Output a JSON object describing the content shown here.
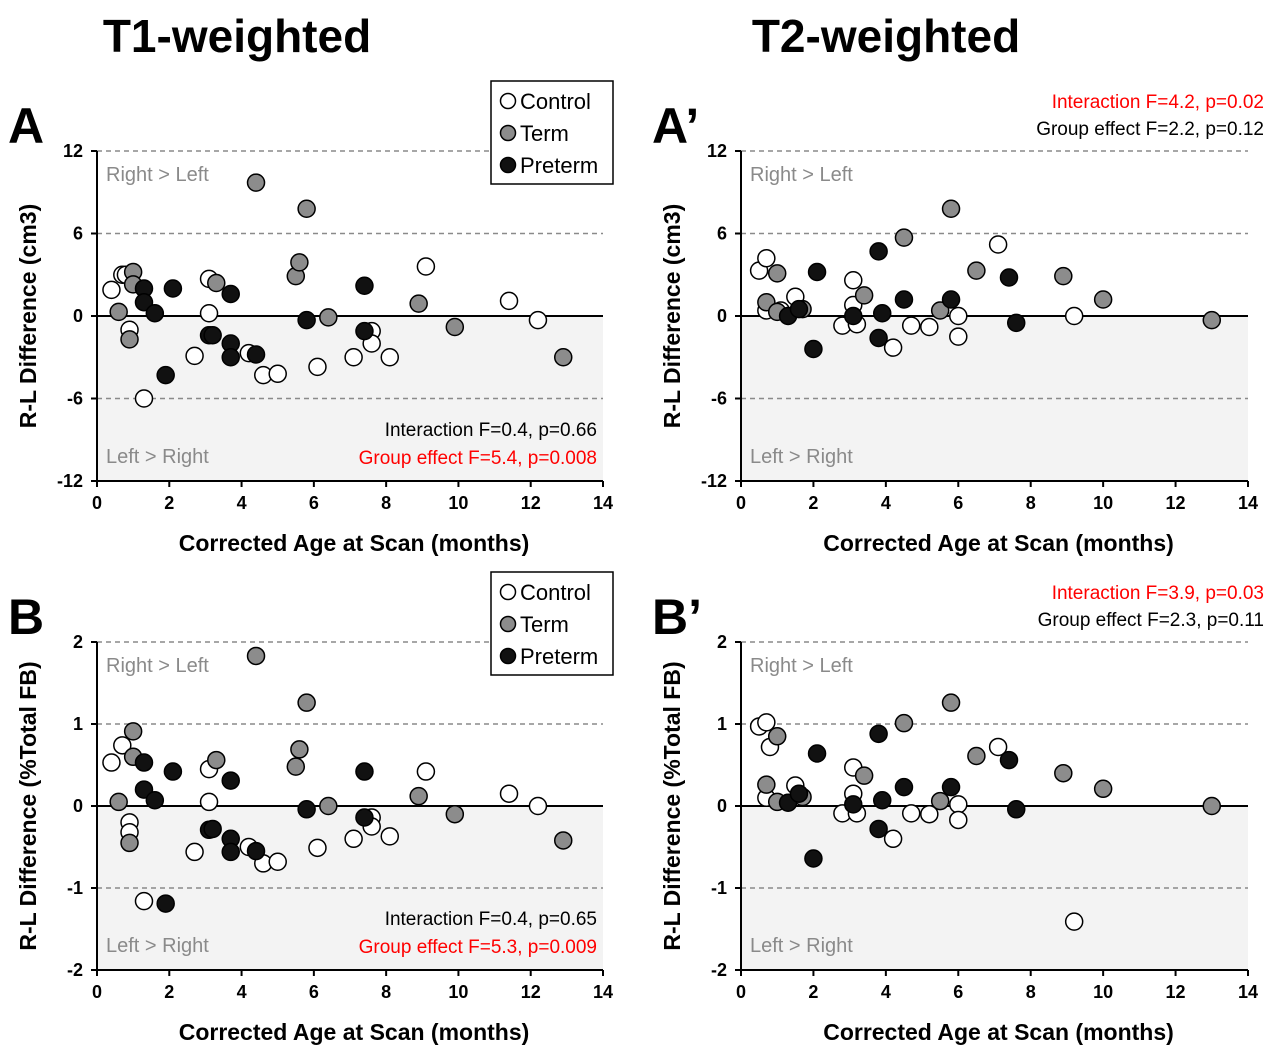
{
  "column_titles": [
    "T1-weighted",
    "T2-weighted"
  ],
  "colors": {
    "control": "#ffffff",
    "term": "#8c8c8c",
    "preterm": "#111111",
    "significant": "#ff0000",
    "normal": "#000000",
    "region_label": "#8a8a8a",
    "negative_shade": "#f3f3f3"
  },
  "chart_data": [
    {
      "panel": "A",
      "type": "scatter",
      "xlabel": "Corrected Age at Scan (months)",
      "ylabel": "R-L Difference (cm3)",
      "xlim": [
        0,
        14
      ],
      "ylim": [
        -12,
        12
      ],
      "xticks": [
        0,
        2,
        4,
        6,
        8,
        10,
        12,
        14
      ],
      "yticks": [
        12,
        6,
        0,
        -6,
        -12
      ],
      "gridlines": [
        12,
        6,
        -6
      ],
      "region_labels": [
        "Right > Left",
        "Left > Right"
      ],
      "legend": {
        "placement": "top-right",
        "entries": [
          "Control",
          "Term",
          "Preterm"
        ]
      },
      "stats": [
        {
          "text": "Interaction F=0.4, p=0.66",
          "significant": false
        },
        {
          "text": "Group effect F=5.4, p=0.008",
          "significant": true
        }
      ],
      "stats_placement": "bottom-right",
      "series": [
        {
          "name": "Control",
          "points": [
            [
              0.4,
              1.9
            ],
            [
              0.7,
              3.0
            ],
            [
              0.9,
              -1.0
            ],
            [
              0.8,
              3.0
            ],
            [
              1.3,
              -6.0
            ],
            [
              2.7,
              -2.9
            ],
            [
              3.1,
              2.7
            ],
            [
              3.1,
              0.2
            ],
            [
              4.2,
              -2.7
            ],
            [
              4.6,
              -4.3
            ],
            [
              5.0,
              -4.2
            ],
            [
              6.1,
              -3.7
            ],
            [
              7.1,
              -3.0
            ],
            [
              7.6,
              -1.1
            ],
            [
              7.6,
              -2.0
            ],
            [
              8.1,
              -3.0
            ],
            [
              9.1,
              3.6
            ],
            [
              11.4,
              1.1
            ],
            [
              12.2,
              -0.3
            ]
          ]
        },
        {
          "name": "Term",
          "points": [
            [
              0.6,
              0.3
            ],
            [
              0.9,
              -1.7
            ],
            [
              1.0,
              3.2
            ],
            [
              1.0,
              2.3
            ],
            [
              3.3,
              2.4
            ],
            [
              4.4,
              9.7
            ],
            [
              5.5,
              2.9
            ],
            [
              5.6,
              3.9
            ],
            [
              5.8,
              7.8
            ],
            [
              6.4,
              -0.1
            ],
            [
              8.9,
              0.9
            ],
            [
              9.9,
              -0.8
            ],
            [
              12.9,
              -3.0
            ]
          ]
        },
        {
          "name": "Preterm",
          "points": [
            [
              1.3,
              2.0
            ],
            [
              1.3,
              1.0
            ],
            [
              1.6,
              0.2
            ],
            [
              1.9,
              -4.3
            ],
            [
              2.1,
              2.0
            ],
            [
              3.1,
              -1.4
            ],
            [
              3.2,
              -1.4
            ],
            [
              3.7,
              1.6
            ],
            [
              3.7,
              -2.0
            ],
            [
              3.7,
              -3.0
            ],
            [
              4.4,
              -2.8
            ],
            [
              5.8,
              -0.3
            ],
            [
              7.4,
              2.2
            ],
            [
              7.4,
              -1.1
            ]
          ]
        }
      ]
    },
    {
      "panel": "A’",
      "type": "scatter",
      "xlabel": "Corrected Age at Scan (months)",
      "ylabel": "R-L Difference (cm3)",
      "xlim": [
        0,
        14
      ],
      "ylim": [
        -12,
        12
      ],
      "xticks": [
        0,
        2,
        4,
        6,
        8,
        10,
        12,
        14
      ],
      "yticks": [
        12,
        6,
        0,
        -6,
        -12
      ],
      "gridlines": [
        12,
        6,
        -6
      ],
      "region_labels": [
        "Right > Left",
        "Left > Right"
      ],
      "stats": [
        {
          "text": "Interaction F=4.2, p=0.02",
          "significant": true
        },
        {
          "text": "Group effect F=2.2, p=0.12",
          "significant": false
        }
      ],
      "stats_placement": "above-top-right",
      "series": [
        {
          "name": "Control",
          "points": [
            [
              0.5,
              3.3
            ],
            [
              0.7,
              4.2
            ],
            [
              0.7,
              0.4
            ],
            [
              1.1,
              0.4
            ],
            [
              1.5,
              1.4
            ],
            [
              2.8,
              -0.7
            ],
            [
              3.1,
              2.6
            ],
            [
              3.1,
              0.8
            ],
            [
              3.2,
              -0.6
            ],
            [
              4.2,
              -2.3
            ],
            [
              4.7,
              -0.7
            ],
            [
              5.2,
              -0.8
            ],
            [
              6.0,
              0.0
            ],
            [
              6.0,
              -1.5
            ],
            [
              7.1,
              5.2
            ],
            [
              9.2,
              0.0
            ]
          ]
        },
        {
          "name": "Term",
          "points": [
            [
              0.7,
              1.0
            ],
            [
              1.0,
              3.1
            ],
            [
              1.0,
              0.3
            ],
            [
              1.7,
              0.5
            ],
            [
              3.4,
              1.5
            ],
            [
              4.5,
              5.7
            ],
            [
              5.5,
              0.4
            ],
            [
              5.8,
              7.8
            ],
            [
              6.5,
              3.3
            ],
            [
              8.9,
              2.9
            ],
            [
              10.0,
              1.2
            ],
            [
              13.0,
              -0.3
            ]
          ]
        },
        {
          "name": "Preterm",
          "points": [
            [
              1.3,
              0.0
            ],
            [
              1.6,
              0.5
            ],
            [
              2.1,
              3.2
            ],
            [
              2.0,
              -2.4
            ],
            [
              3.1,
              0.0
            ],
            [
              3.8,
              4.7
            ],
            [
              3.8,
              -1.6
            ],
            [
              3.9,
              0.2
            ],
            [
              4.5,
              1.2
            ],
            [
              5.8,
              1.2
            ],
            [
              7.4,
              2.8
            ],
            [
              7.6,
              -0.5
            ]
          ]
        }
      ]
    },
    {
      "panel": "B",
      "type": "scatter",
      "xlabel": "Corrected Age at Scan (months)",
      "ylabel": "R-L Difference (%Total FB)",
      "xlim": [
        0,
        14
      ],
      "ylim": [
        -2,
        2
      ],
      "xticks": [
        0,
        2,
        4,
        6,
        8,
        10,
        12,
        14
      ],
      "yticks": [
        2,
        1,
        0,
        -1,
        -2
      ],
      "gridlines": [
        2,
        1,
        -1
      ],
      "region_labels": [
        "Right > Left",
        "Left > Right"
      ],
      "legend": {
        "placement": "top-right",
        "entries": [
          "Control",
          "Term",
          "Preterm"
        ]
      },
      "stats": [
        {
          "text": "Interaction F=0.4, p=0.65",
          "significant": false
        },
        {
          "text": "Group effect F=5.3, p=0.009",
          "significant": true
        }
      ],
      "stats_placement": "bottom-right",
      "series": [
        {
          "name": "Control",
          "points": [
            [
              0.4,
              0.53
            ],
            [
              0.7,
              0.74
            ],
            [
              0.9,
              -0.2
            ],
            [
              0.9,
              -0.32
            ],
            [
              1.3,
              -1.16
            ],
            [
              2.7,
              -0.56
            ],
            [
              3.1,
              0.45
            ],
            [
              3.1,
              0.05
            ],
            [
              4.2,
              -0.5
            ],
            [
              4.6,
              -0.7
            ],
            [
              5.0,
              -0.68
            ],
            [
              6.1,
              -0.51
            ],
            [
              7.1,
              -0.4
            ],
            [
              7.6,
              -0.14
            ],
            [
              7.6,
              -0.25
            ],
            [
              8.1,
              -0.37
            ],
            [
              9.1,
              0.42
            ],
            [
              11.4,
              0.15
            ],
            [
              12.2,
              0.0
            ]
          ]
        },
        {
          "name": "Term",
          "points": [
            [
              0.6,
              0.05
            ],
            [
              0.9,
              -0.45
            ],
            [
              1.0,
              0.91
            ],
            [
              1.0,
              0.6
            ],
            [
              3.3,
              0.56
            ],
            [
              4.4,
              1.83
            ],
            [
              5.5,
              0.48
            ],
            [
              5.6,
              0.69
            ],
            [
              5.8,
              1.26
            ],
            [
              6.4,
              0.0
            ],
            [
              8.9,
              0.12
            ],
            [
              9.9,
              -0.1
            ],
            [
              12.9,
              -0.42
            ]
          ]
        },
        {
          "name": "Preterm",
          "points": [
            [
              1.3,
              0.53
            ],
            [
              1.3,
              0.2
            ],
            [
              1.6,
              0.07
            ],
            [
              1.9,
              -1.19
            ],
            [
              2.1,
              0.42
            ],
            [
              3.1,
              -0.29
            ],
            [
              3.2,
              -0.28
            ],
            [
              3.7,
              0.31
            ],
            [
              3.7,
              -0.4
            ],
            [
              3.7,
              -0.56
            ],
            [
              4.4,
              -0.55
            ],
            [
              5.8,
              -0.04
            ],
            [
              7.4,
              0.42
            ],
            [
              7.4,
              -0.14
            ]
          ]
        }
      ]
    },
    {
      "panel": "B’",
      "type": "scatter",
      "xlabel": "Corrected Age at Scan (months)",
      "ylabel": "R-L Difference (%Total FB)",
      "xlim": [
        0,
        14
      ],
      "ylim": [
        -2,
        2
      ],
      "xticks": [
        0,
        2,
        4,
        6,
        8,
        10,
        12,
        14
      ],
      "yticks": [
        2,
        1,
        0,
        -1,
        -2
      ],
      "gridlines": [
        2,
        1,
        -1
      ],
      "region_labels": [
        "Right > Left",
        "Left > Right"
      ],
      "stats": [
        {
          "text": "Interaction F=3.9, p=0.03",
          "significant": true
        },
        {
          "text": "Group effect F=2.3, p=0.11",
          "significant": false
        }
      ],
      "stats_placement": "above-top-right",
      "series": [
        {
          "name": "Control",
          "points": [
            [
              0.5,
              0.97
            ],
            [
              0.7,
              1.02
            ],
            [
              0.8,
              0.72
            ],
            [
              0.7,
              0.1
            ],
            [
              1.5,
              0.25
            ],
            [
              2.8,
              -0.09
            ],
            [
              3.1,
              0.47
            ],
            [
              3.1,
              0.15
            ],
            [
              3.2,
              -0.09
            ],
            [
              4.2,
              -0.4
            ],
            [
              4.7,
              -0.09
            ],
            [
              5.2,
              -0.1
            ],
            [
              6.0,
              0.02
            ],
            [
              6.0,
              -0.17
            ],
            [
              7.1,
              0.72
            ],
            [
              9.2,
              -1.41
            ]
          ]
        },
        {
          "name": "Term",
          "points": [
            [
              0.7,
              0.26
            ],
            [
              1.0,
              0.85
            ],
            [
              1.0,
              0.05
            ],
            [
              1.7,
              0.11
            ],
            [
              3.4,
              0.37
            ],
            [
              4.5,
              1.01
            ],
            [
              5.5,
              0.06
            ],
            [
              5.8,
              1.26
            ],
            [
              6.5,
              0.61
            ],
            [
              8.9,
              0.4
            ],
            [
              10.0,
              0.21
            ],
            [
              13.0,
              0.0
            ]
          ]
        },
        {
          "name": "Preterm",
          "points": [
            [
              1.3,
              0.04
            ],
            [
              1.6,
              0.15
            ],
            [
              2.1,
              0.64
            ],
            [
              2.0,
              -0.64
            ],
            [
              3.1,
              0.02
            ],
            [
              3.8,
              0.88
            ],
            [
              3.8,
              -0.28
            ],
            [
              3.9,
              0.07
            ],
            [
              4.5,
              0.23
            ],
            [
              5.8,
              0.23
            ],
            [
              7.4,
              0.56
            ],
            [
              7.6,
              -0.04
            ]
          ]
        }
      ]
    }
  ]
}
